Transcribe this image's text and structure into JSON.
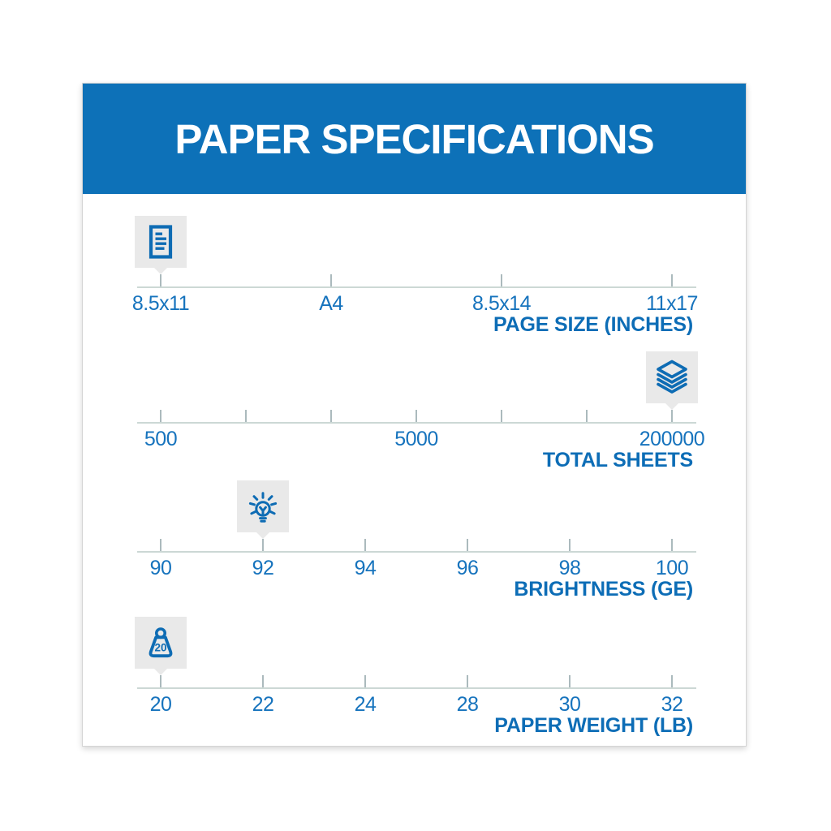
{
  "header": {
    "title": "PAPER SPECIFICATIONS"
  },
  "colors": {
    "banner_blue": "#0d71b8",
    "icon_blue": "#0e6cb4",
    "value_label_blue": "#1673bd",
    "axis_title_blue": "#0d6db6",
    "badge_gray": "#e9e9e9",
    "scale_line_gray": "#ccd8d5",
    "tick_gray": "#abbabd"
  },
  "scales": [
    {
      "title": "PAGE SIZE (INCHES)",
      "icon": "document-icon",
      "tick_count": 4,
      "marker_tick": 0,
      "highlighted_value": "8.5x11",
      "labels": [
        {
          "text": "8.5x11",
          "tick": 0
        },
        {
          "text": "A4",
          "tick": 1
        },
        {
          "text": "8.5x14",
          "tick": 2
        },
        {
          "text": "11x17",
          "tick": 3
        }
      ]
    },
    {
      "title": "TOTAL SHEETS",
      "icon": "paper-stack-icon",
      "tick_count": 7,
      "marker_tick": 6,
      "highlighted_value": "200000",
      "labels": [
        {
          "text": "500",
          "tick": 0
        },
        {
          "text": "5000",
          "tick": 3
        },
        {
          "text": "200000",
          "tick": 6
        }
      ]
    },
    {
      "title": "BRIGHTNESS (GE)",
      "icon": "lightbulb-icon",
      "tick_count": 6,
      "marker_tick": 1,
      "highlighted_value": "92",
      "labels": [
        {
          "text": "90",
          "tick": 0
        },
        {
          "text": "92",
          "tick": 1
        },
        {
          "text": "94",
          "tick": 2
        },
        {
          "text": "96",
          "tick": 3
        },
        {
          "text": "98",
          "tick": 4
        },
        {
          "text": "100",
          "tick": 5
        }
      ]
    },
    {
      "title": "PAPER WEIGHT (LB)",
      "icon": "weight-icon",
      "icon_text": "20",
      "tick_count": 6,
      "marker_tick": 0,
      "highlighted_value": "20",
      "labels": [
        {
          "text": "20",
          "tick": 0
        },
        {
          "text": "22",
          "tick": 1
        },
        {
          "text": "24",
          "tick": 2
        },
        {
          "text": "28",
          "tick": 3
        },
        {
          "text": "30",
          "tick": 4
        },
        {
          "text": "32",
          "tick": 5
        }
      ]
    }
  ]
}
